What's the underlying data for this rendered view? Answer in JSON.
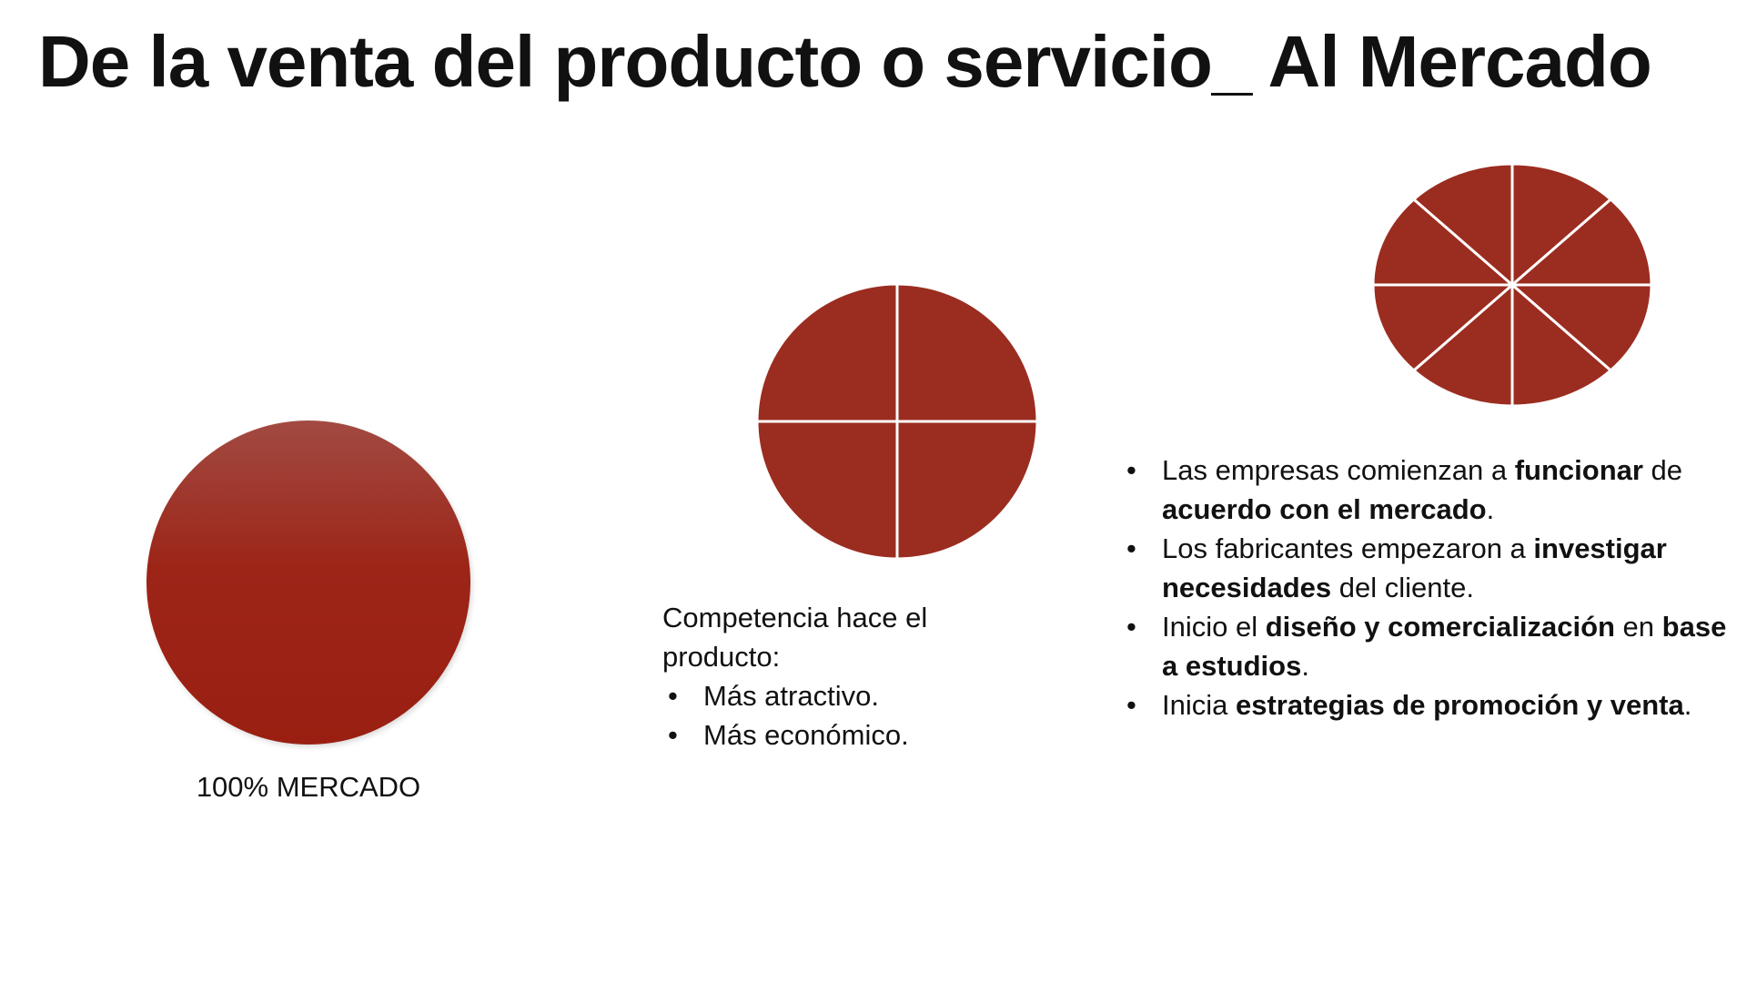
{
  "slide": {
    "title": "De la venta del producto o servicio_ Al Mercado",
    "colors": {
      "pie": "#9b2d20",
      "circle_top": "#a24a42",
      "circle_bottom": "#9a1f12"
    },
    "left": {
      "caption": "100% MERCADO",
      "segments": 1
    },
    "middle": {
      "segments": 4,
      "intro": "Competencia hace el producto:",
      "bullets": [
        "Más atractivo.",
        "Más económico."
      ]
    },
    "right": {
      "segments": 8,
      "bullets": [
        [
          {
            "t": "Las empresas comienzan a ",
            "b": false
          },
          {
            "t": "funcionar",
            "b": true
          },
          {
            "t": " de ",
            "b": false
          },
          {
            "t": "acuerdo con el  mercado",
            "b": true
          },
          {
            "t": ".",
            "b": false
          }
        ],
        [
          {
            "t": "Los fabricantes empezaron a ",
            "b": false
          },
          {
            "t": "investigar necesidades",
            "b": true
          },
          {
            "t": " del cliente.",
            "b": false
          }
        ],
        [
          {
            "t": "Inicio el ",
            "b": false
          },
          {
            "t": "diseño y comercialización",
            "b": true
          },
          {
            "t": " en ",
            "b": false
          },
          {
            "t": "base a estudios",
            "b": true
          },
          {
            "t": ".",
            "b": false
          }
        ],
        [
          {
            "t": "Inicia ",
            "b": false
          },
          {
            "t": "estrategias de promoción y venta",
            "b": true
          },
          {
            "t": ".",
            "b": false
          }
        ]
      ]
    }
  }
}
